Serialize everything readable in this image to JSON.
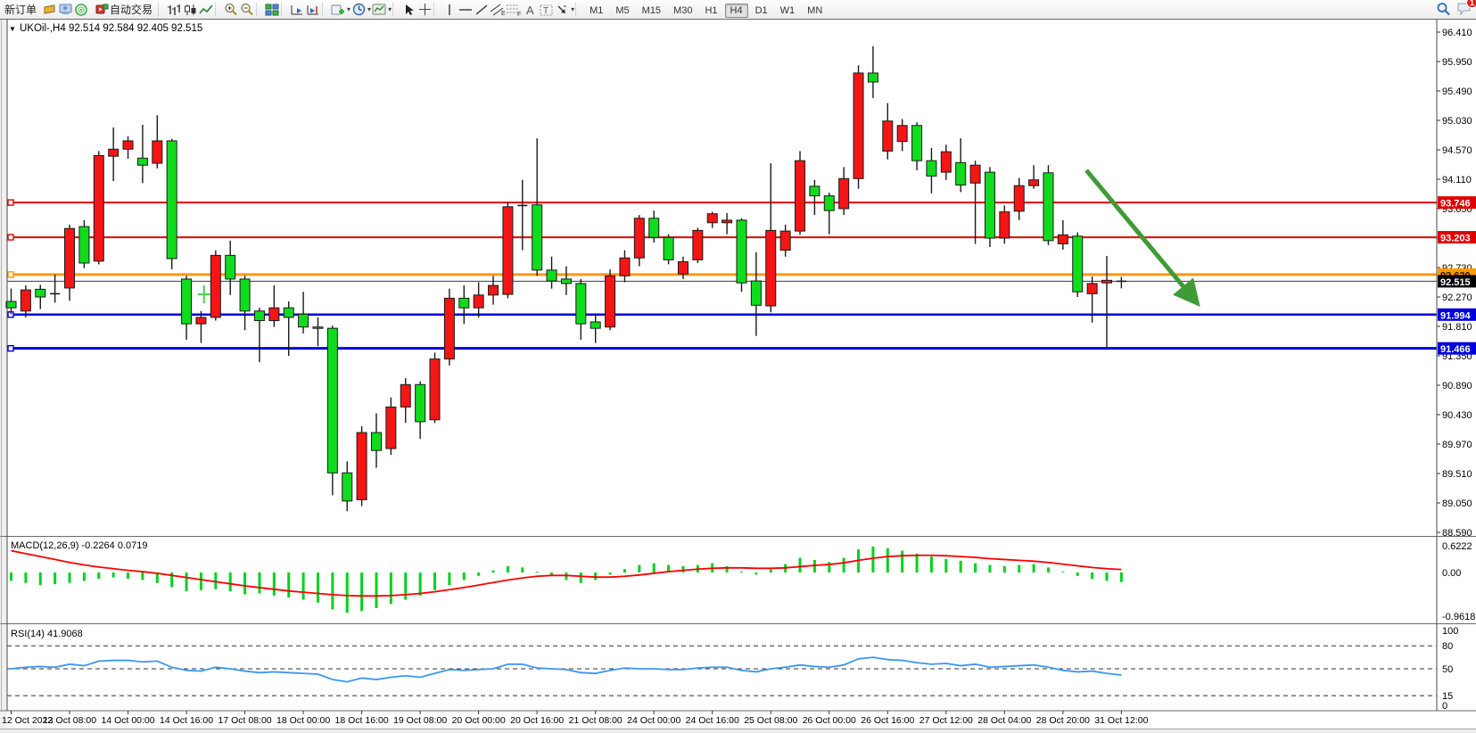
{
  "toolbar": {
    "new_order_label": "新订单",
    "autotrading_label": "自动交易",
    "timeframes": [
      "M1",
      "M5",
      "M15",
      "M30",
      "H1",
      "H4",
      "D1",
      "W1",
      "MN"
    ],
    "active_timeframe": "H4",
    "notification_count": "1",
    "icons": [
      "new-order-ticket-icon",
      "terminal-icon",
      "signal-icon",
      "autotrading-icon",
      "bar-chart-icon",
      "candlestick-icon",
      "line-chart-icon",
      "zoom-in-icon",
      "zoom-out-icon",
      "tile-windows-icon",
      "auto-scroll-icon",
      "chart-shift-icon",
      "indicators-icon",
      "periods-icon",
      "templates-icon",
      "cursor-icon",
      "crosshair-icon",
      "vertical-line-icon",
      "horizontal-line-icon",
      "trendline-icon",
      "channel-icon",
      "fibonacci-icon",
      "text-icon",
      "label-icon",
      "arrows-icon",
      "search-icon",
      "chat-icon"
    ]
  },
  "chart": {
    "title_line": "UKOil-,H4  92.514 92.584 92.405 92.515",
    "price_axis_ticks": [
      "96.410",
      "95.950",
      "95.490",
      "95.030",
      "94.570",
      "94.110",
      "93.650",
      "93.190",
      "92.730",
      "92.270",
      "91.810",
      "91.350",
      "90.890",
      "90.430",
      "89.970",
      "89.510",
      "89.050",
      "88.590"
    ],
    "price_markers": [
      {
        "value": "93.746",
        "bg": "#e00000",
        "fg": "#ffffff"
      },
      {
        "value": "93.203",
        "bg": "#e00000",
        "fg": "#ffffff"
      },
      {
        "value": "92.620",
        "bg": "#ff9900",
        "fg": "#1a1a1a"
      },
      {
        "value": "92.515",
        "bg": "#000000",
        "fg": "#ffffff"
      },
      {
        "value": "91.994",
        "bg": "#0000dd",
        "fg": "#ffffff"
      },
      {
        "value": "91.466",
        "bg": "#0000dd",
        "fg": "#ffffff"
      }
    ],
    "hlines": [
      {
        "price": 93.746,
        "color": "#e00000",
        "width": 2
      },
      {
        "price": 93.203,
        "color": "#e00000",
        "width": 2
      },
      {
        "price": 92.62,
        "color": "#ff9900",
        "width": 3
      },
      {
        "price": 91.994,
        "color": "#0000dd",
        "width": 2.5
      },
      {
        "price": 91.466,
        "color": "#0000dd",
        "width": 3
      }
    ],
    "current_price_line": {
      "price": 92.515,
      "color": "#3c3c3c",
      "width": 1
    },
    "arrow": {
      "from_bar": 73.6,
      "from_price": 94.25,
      "to_bar": 81.2,
      "to_price": 92.17,
      "color": "#3e9b35"
    },
    "cross_marker": {
      "bar": 13.2,
      "price": 92.31,
      "color": "#44d444"
    },
    "time_labels": [
      "12 Oct 2022",
      "13 Oct 08:00",
      "14 Oct 00:00",
      "14 Oct 16:00",
      "17 Oct 08:00",
      "18 Oct 00:00",
      "18 Oct 16:00",
      "19 Oct 08:00",
      "20 Oct 00:00",
      "20 Oct 16:00",
      "21 Oct 08:00",
      "24 Oct 00:00",
      "24 Oct 16:00",
      "25 Oct 08:00",
      "26 Oct 00:00",
      "26 Oct 16:00",
      "27 Oct 12:00",
      "28 Oct 04:00",
      "28 Oct 20:00",
      "31 Oct 12:00"
    ]
  },
  "chart_data": {
    "type": "candlestick",
    "symbol": "UKOil-",
    "period": "H4",
    "open": 92.514,
    "high": 92.584,
    "low": 92.405,
    "close": 92.515,
    "price_axis_range": [
      88.548,
      96.605
    ],
    "bars_per_time_tick": 4,
    "colors": {
      "up": "#f51515",
      "down": "#10dc1e",
      "doji": "#1a1a1a",
      "macd_hist": "#00d21e",
      "macd_signal": "#ff0000",
      "rsi_line": "#3b96f4"
    },
    "candles": [
      [
        92.2,
        92.4,
        92.0,
        92.1
      ],
      [
        92.05,
        92.45,
        91.95,
        92.38
      ],
      [
        92.39,
        92.46,
        92.08,
        92.27
      ],
      [
        92.32,
        92.62,
        92.18,
        92.32
      ],
      [
        92.41,
        93.4,
        92.21,
        93.34
      ],
      [
        93.37,
        93.47,
        92.72,
        92.8
      ],
      [
        92.83,
        94.55,
        92.78,
        94.48
      ],
      [
        94.47,
        94.92,
        94.08,
        94.58
      ],
      [
        94.58,
        94.78,
        94.43,
        94.71
      ],
      [
        94.44,
        94.96,
        94.05,
        94.33
      ],
      [
        94.36,
        95.11,
        94.28,
        94.71
      ],
      [
        94.71,
        94.74,
        92.7,
        92.87
      ],
      [
        92.55,
        92.6,
        91.6,
        91.85
      ],
      [
        91.85,
        92.05,
        91.55,
        91.95
      ],
      [
        91.95,
        93.0,
        91.9,
        92.92
      ],
      [
        92.92,
        93.15,
        92.3,
        92.55
      ],
      [
        92.55,
        92.6,
        91.75,
        92.05
      ],
      [
        92.05,
        92.1,
        91.25,
        91.9
      ],
      [
        91.9,
        92.45,
        91.8,
        92.1
      ],
      [
        92.1,
        92.2,
        91.35,
        91.95
      ],
      [
        92.0,
        92.35,
        91.7,
        91.8
      ],
      [
        91.8,
        91.95,
        91.5,
        91.78
      ],
      [
        91.78,
        91.82,
        89.17,
        89.52
      ],
      [
        89.52,
        89.7,
        88.92,
        89.08
      ],
      [
        89.1,
        90.25,
        89.0,
        90.15
      ],
      [
        90.15,
        90.45,
        89.6,
        89.87
      ],
      [
        89.9,
        90.7,
        89.8,
        90.55
      ],
      [
        90.55,
        91.0,
        90.3,
        90.9
      ],
      [
        90.9,
        90.95,
        90.05,
        90.32
      ],
      [
        90.35,
        91.4,
        90.3,
        91.3
      ],
      [
        91.3,
        92.4,
        91.2,
        92.25
      ],
      [
        92.25,
        92.45,
        91.85,
        92.1
      ],
      [
        92.1,
        92.5,
        91.95,
        92.3
      ],
      [
        92.3,
        92.6,
        92.15,
        92.45
      ],
      [
        92.31,
        93.75,
        92.25,
        93.68
      ],
      [
        93.7,
        94.1,
        93.0,
        93.7
      ],
      [
        93.71,
        94.75,
        92.6,
        92.69
      ],
      [
        92.69,
        92.9,
        92.4,
        92.52
      ],
      [
        92.55,
        92.75,
        92.3,
        92.48
      ],
      [
        92.48,
        92.55,
        91.6,
        91.85
      ],
      [
        91.88,
        92.0,
        91.55,
        91.78
      ],
      [
        91.8,
        92.7,
        91.75,
        92.6
      ],
      [
        92.6,
        93.0,
        92.5,
        92.88
      ],
      [
        92.88,
        93.55,
        92.75,
        93.5
      ],
      [
        93.5,
        93.62,
        93.12,
        93.2
      ],
      [
        93.2,
        93.25,
        92.78,
        92.85
      ],
      [
        92.63,
        92.9,
        92.55,
        92.82
      ],
      [
        92.85,
        93.35,
        92.8,
        93.31
      ],
      [
        93.43,
        93.6,
        93.35,
        93.57
      ],
      [
        93.43,
        93.58,
        93.25,
        93.47
      ],
      [
        93.47,
        93.5,
        92.35,
        92.49
      ],
      [
        92.52,
        92.97,
        91.66,
        92.14
      ],
      [
        92.13,
        94.36,
        92.03,
        93.31
      ],
      [
        93.0,
        93.4,
        92.9,
        93.3
      ],
      [
        93.3,
        94.55,
        93.24,
        94.4
      ],
      [
        94.0,
        94.1,
        93.55,
        93.85
      ],
      [
        93.85,
        93.9,
        93.25,
        93.62
      ],
      [
        93.65,
        94.3,
        93.55,
        94.12
      ],
      [
        94.12,
        95.89,
        93.96,
        95.77
      ],
      [
        95.77,
        96.19,
        95.38,
        95.63
      ],
      [
        94.55,
        95.3,
        94.42,
        95.02
      ],
      [
        94.7,
        95.05,
        94.55,
        94.95
      ],
      [
        94.95,
        95.0,
        94.25,
        94.4
      ],
      [
        94.4,
        94.6,
        93.89,
        94.16
      ],
      [
        94.22,
        94.65,
        94.1,
        94.54
      ],
      [
        94.37,
        94.75,
        93.91,
        94.02
      ],
      [
        94.05,
        94.4,
        93.1,
        94.33
      ],
      [
        94.22,
        94.3,
        93.05,
        93.19
      ],
      [
        93.19,
        93.7,
        93.1,
        93.6
      ],
      [
        93.61,
        94.13,
        93.47,
        94.01
      ],
      [
        94.01,
        94.33,
        93.96,
        94.1
      ],
      [
        94.21,
        94.33,
        93.08,
        93.15
      ],
      [
        93.1,
        93.47,
        93.01,
        93.24
      ],
      [
        93.22,
        93.28,
        92.27,
        92.35
      ],
      [
        92.32,
        92.59,
        91.87,
        92.48
      ],
      [
        92.49,
        92.91,
        91.47,
        92.53
      ],
      [
        92.514,
        92.584,
        92.405,
        92.515
      ]
    ],
    "indicators": {
      "macd": {
        "label": "MACD(12,26,9) -0.2264 0.0719",
        "params": "12,26,9",
        "main_value": -0.2264,
        "signal_value": 0.0719,
        "axis_labels": [
          "0.6222",
          "0.00",
          "-0.9618"
        ],
        "histogram": [
          -0.2,
          -0.25,
          -0.3,
          -0.28,
          -0.25,
          -0.2,
          -0.15,
          -0.12,
          -0.15,
          -0.18,
          -0.25,
          -0.35,
          -0.45,
          -0.42,
          -0.4,
          -0.45,
          -0.52,
          -0.5,
          -0.55,
          -0.6,
          -0.65,
          -0.72,
          -0.88,
          -0.96,
          -0.92,
          -0.85,
          -0.75,
          -0.65,
          -0.55,
          -0.42,
          -0.3,
          -0.18,
          -0.08,
          0.05,
          0.15,
          0.12,
          0.02,
          -0.08,
          -0.18,
          -0.25,
          -0.18,
          -0.05,
          0.08,
          0.18,
          0.22,
          0.18,
          0.15,
          0.18,
          0.22,
          0.15,
          0.02,
          -0.05,
          0.08,
          0.2,
          0.35,
          0.3,
          0.25,
          0.35,
          0.55,
          0.62,
          0.58,
          0.52,
          0.45,
          0.38,
          0.32,
          0.28,
          0.22,
          0.18,
          0.15,
          0.18,
          0.2,
          0.12,
          0.02,
          -0.08,
          -0.15,
          -0.2,
          -0.2264
        ],
        "signal": [
          0.52,
          0.45,
          0.38,
          0.31,
          0.24,
          0.18,
          0.13,
          0.09,
          0.05,
          0.02,
          -0.02,
          -0.07,
          -0.12,
          -0.17,
          -0.22,
          -0.27,
          -0.32,
          -0.36,
          -0.4,
          -0.44,
          -0.47,
          -0.5,
          -0.53,
          -0.55,
          -0.56,
          -0.56,
          -0.55,
          -0.53,
          -0.5,
          -0.46,
          -0.41,
          -0.36,
          -0.3,
          -0.24,
          -0.18,
          -0.13,
          -0.09,
          -0.07,
          -0.07,
          -0.09,
          -0.11,
          -0.11,
          -0.09,
          -0.06,
          -0.02,
          0.02,
          0.05,
          0.08,
          0.1,
          0.11,
          0.11,
          0.1,
          0.1,
          0.11,
          0.14,
          0.17,
          0.19,
          0.23,
          0.29,
          0.34,
          0.38,
          0.4,
          0.41,
          0.41,
          0.4,
          0.38,
          0.36,
          0.33,
          0.31,
          0.29,
          0.27,
          0.24,
          0.2,
          0.16,
          0.12,
          0.09,
          0.0719
        ]
      },
      "rsi": {
        "label": "RSI(14) 41.9068",
        "value": 41.9068,
        "axis_labels": [
          "100",
          "80",
          "50",
          "15",
          "0"
        ],
        "level_lines": [
          80,
          50,
          15
        ],
        "values": [
          50,
          52,
          53,
          52,
          56,
          54,
          60,
          61,
          61,
          59,
          60,
          52,
          48,
          47,
          52,
          50,
          47,
          45,
          46,
          45,
          44,
          43,
          36,
          33,
          38,
          36,
          39,
          41,
          39,
          44,
          49,
          48,
          49,
          50,
          56,
          56,
          51,
          50,
          49,
          45,
          44,
          48,
          51,
          50,
          50,
          49,
          49,
          51,
          52,
          52,
          48,
          46,
          50,
          52,
          55,
          53,
          52,
          55,
          63,
          65,
          62,
          61,
          58,
          56,
          57,
          54,
          56,
          52,
          53,
          54,
          55,
          52,
          48,
          46,
          47,
          44,
          41.9068
        ]
      }
    }
  }
}
